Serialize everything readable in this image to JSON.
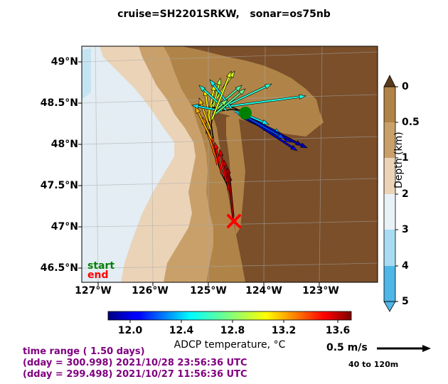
{
  "title": "cruise=SH2201SRKW,   sonar=os75nb",
  "map": {
    "lat_labels": [
      "49°N",
      "48.5°N",
      "48°N",
      "47.5°N",
      "47°N",
      "46.5°N"
    ],
    "lon_labels": [
      "127°W",
      "126°W",
      "125°W",
      "124°W",
      "123°W"
    ],
    "start_label": "start",
    "end_label": "end",
    "start_color": "#008000",
    "end_color": "#ff0000"
  },
  "depth_colorbar": {
    "label": "Depth (km)",
    "ticks": [
      "0",
      "0.5",
      "1",
      "2",
      "3",
      "4",
      "5"
    ],
    "colors": [
      "#7a4f2a",
      "#b08448",
      "#c9a06a",
      "#ebd3b8",
      "#e8f1f6",
      "#a8dcf2",
      "#4fb6e8"
    ]
  },
  "temp_colorbar": {
    "label": "ADCP temperature, °C",
    "ticks": [
      "12.0",
      "12.4",
      "12.8",
      "13.2",
      "13.6"
    ],
    "range": [
      11.82,
      13.72
    ]
  },
  "scale_arrow": {
    "label": "0.5 m/s",
    "depth_range": "40 to 120m"
  },
  "time_info": {
    "line1": "time range ( 1.50 days)",
    "line2": "(dday = 300.998) 2021/10/28 23:56:36 UTC",
    "line3": "(dday = 299.498) 2021/10/27 11:56:36 UTC"
  }
}
